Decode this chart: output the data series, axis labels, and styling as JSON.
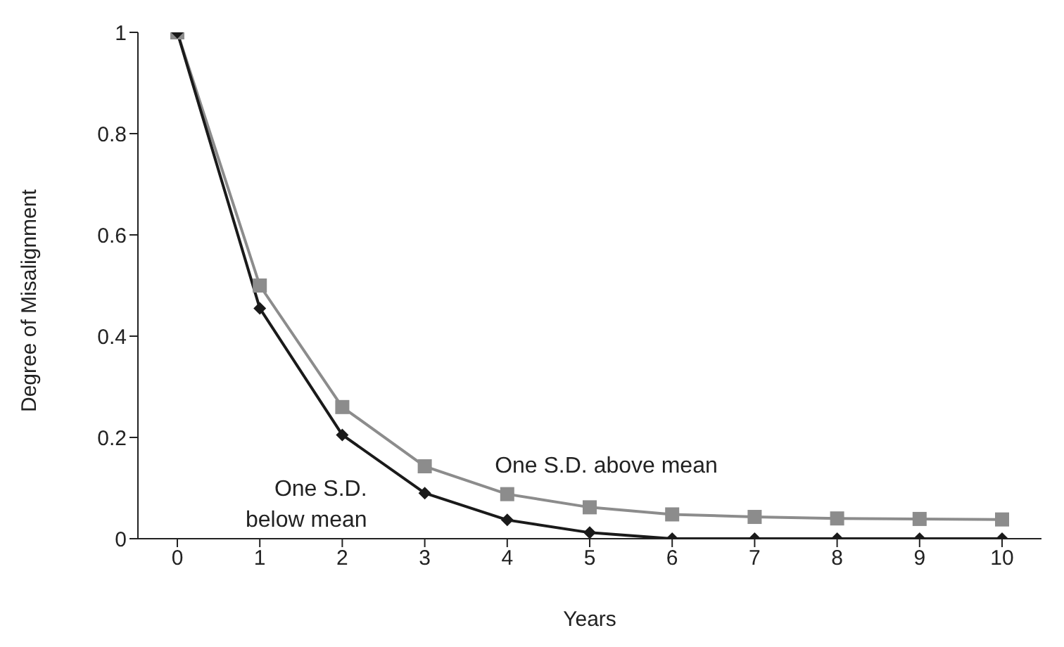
{
  "chart_data": {
    "type": "line",
    "xlabel": "Years",
    "ylabel": "Degree of Misalignment",
    "categories": [
      "0",
      "1",
      "2",
      "3",
      "4",
      "5",
      "6",
      "7",
      "8",
      "9",
      "10"
    ],
    "series": [
      {
        "name": "One S.D. above mean",
        "color": "#8c8c8c",
        "marker": "square",
        "values": [
          1,
          0.5,
          0.26,
          0.143,
          0.088,
          0.062,
          0.048,
          0.043,
          0.04,
          0.039,
          0.038
        ]
      },
      {
        "name": "One S.D.\nbelow mean",
        "color": "#1a1a1a",
        "marker": "diamond",
        "values": [
          1,
          0.455,
          0.205,
          0.09,
          0.037,
          0.012,
          0,
          0,
          0,
          0,
          0
        ]
      }
    ],
    "ylim": [
      0,
      1
    ],
    "yticks": [
      0,
      0.2,
      0.4,
      0.6,
      0.8,
      1
    ],
    "grid": false,
    "legend": false,
    "line_style": "solid"
  }
}
